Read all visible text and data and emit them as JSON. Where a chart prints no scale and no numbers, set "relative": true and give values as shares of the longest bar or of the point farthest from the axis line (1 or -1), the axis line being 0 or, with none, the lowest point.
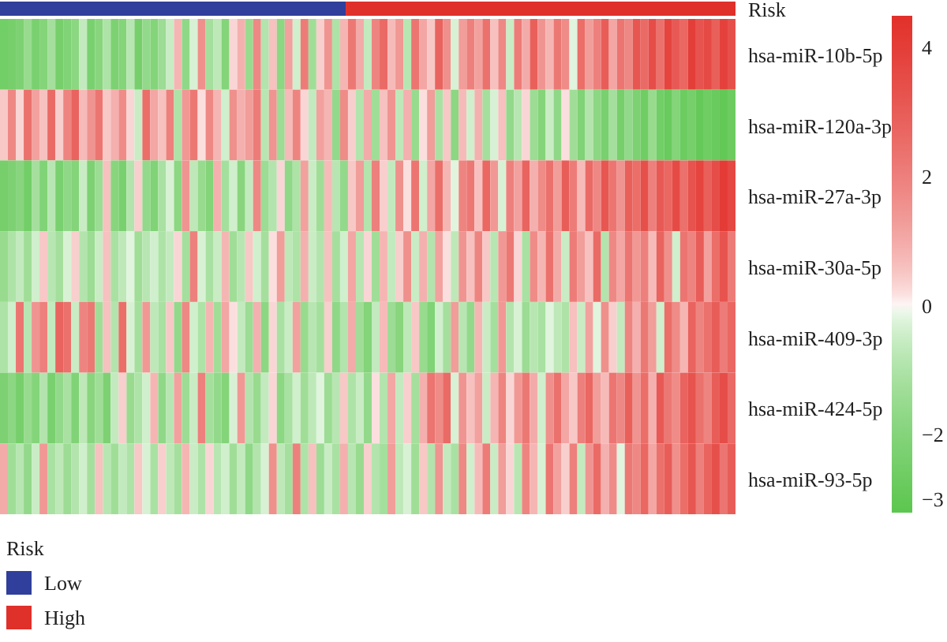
{
  "chart_data": [
    {
      "type": "bar",
      "stacked": true,
      "orientation": "horizontal",
      "relative": true,
      "categories": [
        "Risk"
      ],
      "legend_title": "Risk",
      "legend": "bottom left",
      "series": [
        {
          "name": "Low",
          "color": "#2f3f9b",
          "values": [
            0.47
          ]
        },
        {
          "name": "High",
          "color": "#e0302a",
          "values": [
            0.53
          ]
        }
      ]
    },
    {
      "type": "heatmap",
      "categories": [
        null,
        null,
        null,
        null,
        null,
        null,
        null,
        null,
        null,
        null,
        null,
        null,
        null,
        null,
        null,
        null,
        null,
        null,
        null,
        null,
        null,
        null,
        null,
        null,
        null,
        null,
        null,
        null,
        null,
        null,
        null,
        null,
        null,
        null,
        null,
        null,
        null,
        null,
        null,
        null,
        null,
        null,
        null,
        null,
        null,
        null,
        null,
        null,
        null,
        null,
        null,
        null,
        null,
        null,
        null,
        null,
        null,
        null,
        null,
        null,
        null,
        null,
        null,
        null,
        null,
        null,
        null,
        null,
        null,
        null,
        null,
        null,
        null,
        null,
        null,
        null,
        null,
        null,
        null,
        null,
        null,
        null,
        null,
        null,
        null,
        null,
        null,
        null,
        null,
        null,
        null,
        null,
        null
      ],
      "y_categories": [
        "hsa-miR-10b-5p",
        "hsa-miR-120a-3p",
        "hsa-miR-27a-3p",
        "hsa-miR-30a-5p",
        "hsa-miR-409-3p",
        "hsa-miR-424-5p",
        "hsa-miR-93-5p"
      ],
      "clim": [
        -3.2,
        4.5
      ],
      "cticks": [
        4,
        2,
        0,
        {
          "value": -2,
          "label": "−2"
        },
        {
          "value": -3,
          "label": "−3"
        }
      ],
      "cells": [
        [
          -2.5,
          -2.4,
          -2.2,
          -1.5,
          -2.3,
          -2.0,
          -1.2,
          -2.4,
          -2.1,
          -1.8,
          -0.6,
          -2.3,
          -1.9,
          -1.0,
          -2.2,
          -2.0,
          -0.8,
          -2.4,
          -1.6,
          -2.0,
          -1.4,
          -0.5,
          0.8,
          -1.7,
          -0.3,
          1.6,
          -1.2,
          -0.7,
          -2.0,
          0.3,
          0.9,
          -1.5,
          1.8,
          -0.9,
          0.6,
          -1.8,
          1.2,
          -0.4,
          2.1,
          -1.3,
          0.4,
          1.5,
          -1.0,
          0.8,
          2.2,
          1.0,
          -0.6,
          1.9,
          2.6,
          0.7,
          1.4,
          -0.8,
          2.3,
          1.1,
          0.5,
          2.8,
          1.6,
          -0.3,
          1.3,
          2.0,
          1.2,
          2.4,
          0.6,
          1.8,
          -0.5,
          2.1,
          1.0,
          2.9,
          1.5,
          0.8,
          2.2,
          1.7,
          -0.2,
          2.5,
          1.3,
          2.0,
          3.0,
          1.1,
          2.3,
          1.8,
          3.2,
          2.6,
          3.5,
          2.4,
          3.8,
          3.1,
          2.7,
          4.0,
          3.3,
          3.6,
          2.9,
          3.9,
          3.4
        ],
        [
          0.5,
          1.8,
          0.3,
          2.4,
          1.2,
          0.6,
          2.6,
          0.4,
          1.9,
          2.8,
          0.7,
          1.5,
          2.3,
          0.5,
          0.9,
          1.7,
          0.3,
          -0.5,
          2.5,
          1.1,
          0.6,
          2.0,
          -1.0,
          1.4,
          2.2,
          0.2,
          1.8,
          0.8,
          -0.4,
          1.6,
          0.9,
          1.3,
          2.1,
          -0.8,
          1.5,
          -1.4,
          0.7,
          1.9,
          0.3,
          -0.6,
          1.2,
          0.8,
          -1.6,
          1.7,
          0.4,
          -0.9,
          1.0,
          -1.3,
          0.6,
          1.5,
          -0.7,
          0.9,
          -1.5,
          0.2,
          1.3,
          -1.1,
          0.5,
          -1.8,
          0.7,
          -0.4,
          0.9,
          -1.2,
          -0.3,
          0.6,
          -1.6,
          -0.8,
          0.3,
          -1.4,
          -2.0,
          -0.5,
          -1.7,
          0.2,
          -1.3,
          -2.1,
          -0.9,
          -1.8,
          -2.3,
          -1.2,
          -2.4,
          -1.6,
          -2.2,
          -2.6,
          -1.5,
          -2.5,
          -2.8,
          -2.0,
          -2.7,
          -2.4,
          -2.9,
          -2.6,
          -2.8,
          -3.0,
          -2.7
        ],
        [
          -2.4,
          -2.2,
          -1.9,
          -2.5,
          -1.2,
          -2.1,
          -0.8,
          -2.3,
          -1.7,
          -2.0,
          -0.5,
          -2.2,
          -1.4,
          0.6,
          -1.9,
          -2.3,
          -0.9,
          0.4,
          -1.6,
          -2.1,
          -1.1,
          -0.3,
          -1.8,
          1.5,
          -0.7,
          -1.5,
          -2.0,
          0.9,
          -1.2,
          -0.4,
          -1.9,
          -0.6,
          1.8,
          -1.4,
          -0.9,
          0.3,
          -1.7,
          -1.0,
          1.2,
          -0.5,
          -1.3,
          0.7,
          -0.8,
          -1.6,
          0.5,
          1.3,
          -0.9,
          2.0,
          0.4,
          -0.6,
          1.6,
          0.2,
          2.3,
          -0.4,
          1.1,
          2.5,
          0.8,
          -0.2,
          1.9,
          2.2,
          0.6,
          2.7,
          1.4,
          -0.3,
          2.0,
          1.2,
          2.8,
          0.9,
          1.7,
          2.4,
          1.3,
          3.0,
          2.1,
          0.7,
          2.6,
          1.8,
          3.2,
          2.3,
          1.5,
          2.9,
          2.5,
          3.4,
          2.0,
          3.1,
          2.7,
          3.6,
          2.4,
          3.3,
          3.8,
          2.9,
          3.5,
          4.1,
          3.7
        ],
        [
          -1.5,
          -1.0,
          -0.6,
          -1.3,
          -0.4,
          0.5,
          -0.8,
          -1.2,
          -0.3,
          0.4,
          -0.9,
          -1.4,
          -0.5,
          0.6,
          -1.1,
          -0.7,
          -0.2,
          -1.3,
          -0.8,
          -0.4,
          -1.0,
          -0.6,
          0.3,
          -1.2,
          2.0,
          -0.3,
          -1.1,
          -0.5,
          0.8,
          -1.3,
          -0.8,
          0.5,
          -0.4,
          -1.2,
          0.2,
          1.3,
          -0.7,
          -1.0,
          0.9,
          -0.5,
          -0.9,
          0.6,
          -1.2,
          -0.4,
          1.1,
          -0.8,
          0.3,
          -1.3,
          0.8,
          -0.6,
          0.4,
          1.6,
          -0.5,
          0.9,
          -0.9,
          1.2,
          0.2,
          -0.7,
          1.5,
          0.6,
          1.9,
          0.5,
          -0.8,
          1.4,
          2.2,
          0.3,
          -1.1,
          1.7,
          0.8,
          2.4,
          1.0,
          -0.5,
          2.1,
          1.3,
          0.6,
          2.6,
          -0.9,
          1.8,
          1.1,
          2.3,
          1.4,
          2.0,
          0.7,
          2.8,
          1.6,
          -0.4,
          2.3,
          1.9,
          3.0,
          1.2,
          2.5,
          3.3,
          2.1
        ],
        [
          -1.0,
          -0.4,
          2.3,
          -0.8,
          1.5,
          2.0,
          -0.6,
          2.8,
          2.4,
          -0.5,
          1.9,
          2.2,
          -1.3,
          0.6,
          -0.9,
          2.5,
          -0.3,
          -1.2,
          1.4,
          -0.7,
          -1.1,
          0.5,
          -1.6,
          1.8,
          -0.4,
          -1.0,
          0.8,
          -1.3,
          1.1,
          0.2,
          -0.6,
          -1.4,
          0.9,
          -1.8,
          0.3,
          -1.1,
          -0.5,
          1.2,
          -1.5,
          -0.8,
          -1.2,
          0.4,
          -1.7,
          -0.9,
          1.0,
          -1.3,
          -2.0,
          -0.6,
          0.7,
          -1.4,
          -1.9,
          -0.7,
          0.5,
          -1.5,
          -2.1,
          -0.4,
          -1.2,
          1.3,
          -0.8,
          -1.6,
          0.8,
          -0.5,
          -1.2,
          1.4,
          -0.9,
          -0.3,
          -1.4,
          -0.8,
          -1.1,
          -0.2,
          -0.7,
          -1.0,
          0.6,
          -0.5,
          1.2,
          -0.2,
          1.6,
          0.4,
          -0.6,
          1.9,
          0.9,
          2.2,
          1.3,
          -0.4,
          2.5,
          1.7,
          0.8,
          2.8,
          1.9,
          2.4,
          3.0,
          2.1,
          2.7
        ],
        [
          -2.2,
          -1.8,
          -2.4,
          -1.5,
          -2.0,
          -0.9,
          -2.3,
          -1.6,
          -1.1,
          -2.1,
          -0.7,
          -1.9,
          -1.3,
          -2.2,
          -0.6,
          0.4,
          -1.5,
          -1.0,
          -0.4,
          0.8,
          -1.7,
          -0.8,
          1.2,
          -1.4,
          -0.5,
          2.0,
          -1.2,
          -1.6,
          -2.0,
          -0.3,
          1.4,
          -0.9,
          -1.5,
          -0.6,
          0.3,
          -1.8,
          -1.1,
          -0.4,
          -1.3,
          -0.7,
          -0.2,
          -1.4,
          -0.8,
          0.5,
          -1.0,
          -0.5,
          -1.6,
          0.2,
          -0.9,
          1.1,
          -0.6,
          0.4,
          -1.2,
          0.9,
          2.3,
          1.7,
          2.6,
          -0.3,
          1.5,
          0.6,
          1.2,
          -0.5,
          0.8,
          1.9,
          0.3,
          1.4,
          2.2,
          1.0,
          -0.4,
          1.6,
          2.4,
          1.1,
          0.5,
          2.0,
          2.7,
          1.3,
          0.7,
          2.3,
          1.8,
          2.9,
          1.5,
          2.5,
          0.9,
          3.1,
          2.2,
          1.7,
          2.8,
          3.3,
          2.4,
          1.9,
          3.0,
          3.5,
          2.6
        ],
        [
          1.0,
          -1.3,
          -0.8,
          -1.6,
          -0.5,
          1.4,
          -1.1,
          -0.7,
          -1.4,
          -0.9,
          -0.4,
          -1.2,
          0.6,
          -0.8,
          -1.3,
          -0.6,
          -1.0,
          0.5,
          -0.3,
          -1.1,
          0.4,
          -0.7,
          -1.2,
          0.8,
          -0.5,
          -1.0,
          0.3,
          -0.8,
          -0.4,
          -1.3,
          -0.6,
          -1.7,
          -0.9,
          -0.3,
          1.6,
          -0.7,
          -1.2,
          2.0,
          -1.0,
          0.6,
          -1.4,
          -0.5,
          -1.1,
          0.9,
          -0.8,
          -1.5,
          0.4,
          -0.9,
          -1.2,
          1.3,
          -0.7,
          -0.3,
          -1.3,
          0.5,
          -0.9,
          1.5,
          -0.6,
          -1.1,
          1.8,
          -0.4,
          0.7,
          2.1,
          -0.5,
          1.3,
          0.3,
          -0.8,
          1.9,
          0.8,
          -0.3,
          2.3,
          1.2,
          0.4,
          2.0,
          -0.6,
          1.5,
          2.6,
          0.9,
          1.7,
          -0.2,
          2.2,
          1.8,
          2.7,
          1.1,
          2.4,
          3.0,
          1.6,
          2.5,
          3.2,
          2.0,
          2.8,
          3.4,
          2.3,
          3.0
        ]
      ]
    }
  ]
}
